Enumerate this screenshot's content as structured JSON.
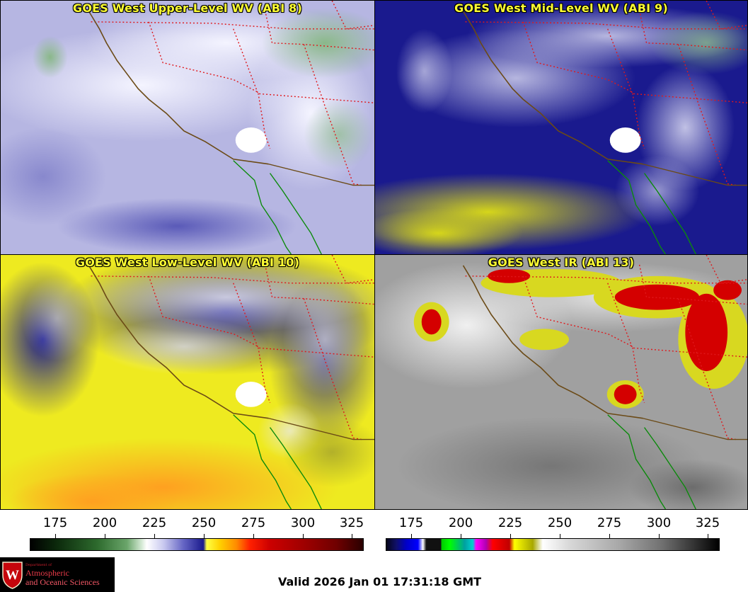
{
  "panels": [
    {
      "id": "p1",
      "title": "GOES West Upper-Level WV (ABI 8)"
    },
    {
      "id": "p2",
      "title": "GOES West Mid-Level WV (ABI 9)"
    },
    {
      "id": "p3",
      "title": "GOES West Low-Level WV (ABI 10)"
    },
    {
      "id": "p4",
      "title": "GOES West IR (ABI 13)"
    }
  ],
  "colorbars": {
    "wv": {
      "ticks": [
        "175",
        "200",
        "225",
        "250",
        "275",
        "300",
        "325"
      ]
    },
    "ir": {
      "ticks": [
        "175",
        "200",
        "225",
        "250",
        "275",
        "300",
        "325"
      ]
    }
  },
  "logo": {
    "department": "Department of",
    "line1": "Atmospheric",
    "line2": "and Oceanic Sciences",
    "seal_letter": "W"
  },
  "valid_time": "Valid 2026 Jan 01 17:31:18 GMT",
  "colors": {
    "title": "#ffff33",
    "state_borders": "#e0181c",
    "coastline": "#6b4a16",
    "mexico_coast": "#0b8a0b"
  }
}
